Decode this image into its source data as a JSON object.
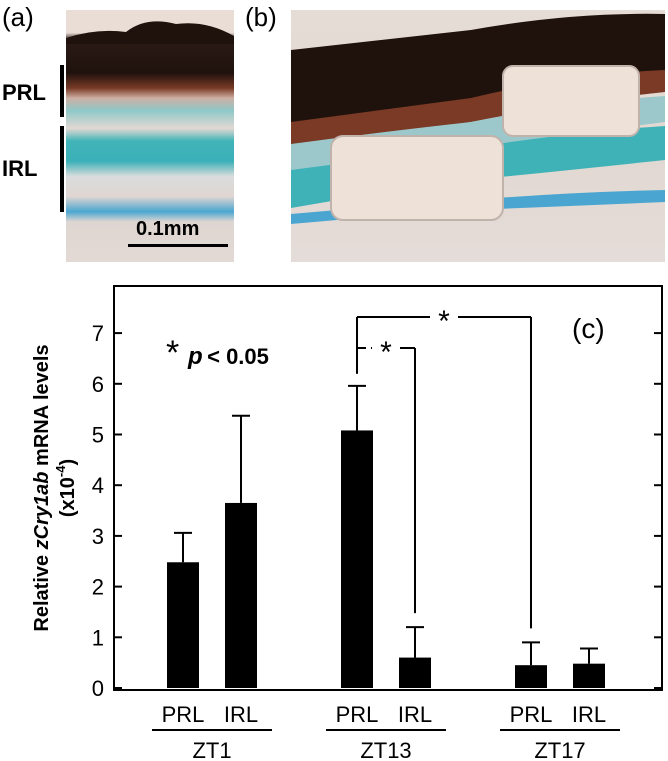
{
  "panels": {
    "a_label": "(a)",
    "b_label": "(b)",
    "c_label": "(c)"
  },
  "micrograph_a": {
    "layers": [
      "PRL",
      "IRL"
    ],
    "scale_bar": "0.1mm"
  },
  "chart_data": {
    "type": "bar",
    "panel_label": "(c)",
    "ylabel": "Relative zCry1ab mRNA levels (x10-4)",
    "ylabel_parts": {
      "pre": "Relative ",
      "italic": "zCry1ab",
      "post": " mRNA levels",
      "line2": "(x10",
      "exp": "-4",
      "close": ")"
    },
    "ylim": [
      0,
      8
    ],
    "yticks": [
      0,
      1,
      2,
      3,
      4,
      5,
      6,
      7
    ],
    "groups": [
      {
        "name": "ZT1",
        "categories": [
          "PRL",
          "IRL"
        ],
        "values": [
          2.48,
          3.65
        ],
        "errors": [
          0.58,
          1.72
        ]
      },
      {
        "name": "ZT13",
        "categories": [
          "PRL",
          "IRL"
        ],
        "values": [
          5.08,
          0.6
        ],
        "errors": [
          0.88,
          0.6
        ]
      },
      {
        "name": "ZT17",
        "categories": [
          "PRL",
          "IRL"
        ],
        "values": [
          0.45,
          0.48
        ],
        "errors": [
          0.45,
          0.3
        ]
      }
    ],
    "significance_note": {
      "star": "*",
      "p": "p",
      "text": " < 0.05"
    },
    "significance": [
      {
        "from": "ZT13 PRL",
        "to": "ZT13 IRL",
        "mark": "*"
      },
      {
        "from": "ZT13 PRL",
        "to": "ZT17 PRL",
        "mark": "*"
      }
    ],
    "bar_color": "#000000"
  }
}
